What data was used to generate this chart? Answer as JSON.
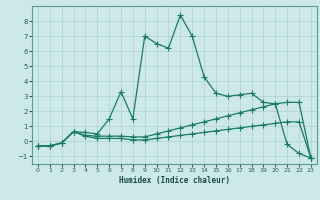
{
  "xlabel": "Humidex (Indice chaleur)",
  "background_color": "#cde8e8",
  "grid_color": "#b0d0d0",
  "line_color": "#1a7a6a",
  "xlim": [
    -0.5,
    23.5
  ],
  "ylim": [
    -1.5,
    9.0
  ],
  "xticks": [
    0,
    1,
    2,
    3,
    4,
    5,
    6,
    7,
    8,
    9,
    10,
    11,
    12,
    13,
    14,
    15,
    16,
    17,
    18,
    19,
    20,
    21,
    22,
    23
  ],
  "yticks": [
    -1,
    0,
    1,
    2,
    3,
    4,
    5,
    6,
    7,
    8
  ],
  "series": [
    {
      "x": [
        0,
        1,
        2,
        3,
        4,
        5,
        6,
        7,
        8,
        9,
        10,
        11,
        12,
        13,
        14,
        15,
        16,
        17,
        18,
        19,
        20,
        21,
        22,
        23
      ],
      "y": [
        -0.3,
        -0.3,
        -0.1,
        0.65,
        0.6,
        0.5,
        1.5,
        3.3,
        1.5,
        7.0,
        6.5,
        6.2,
        8.4,
        7.0,
        4.3,
        3.2,
        3.0,
        3.1,
        3.2,
        2.6,
        2.5,
        -0.2,
        -0.8,
        -1.1
      ]
    },
    {
      "x": [
        0,
        1,
        2,
        3,
        4,
        5,
        6,
        7,
        8,
        9,
        10,
        11,
        12,
        13,
        14,
        15,
        16,
        17,
        18,
        19,
        20,
        21,
        22,
        23
      ],
      "y": [
        -0.3,
        -0.3,
        -0.1,
        0.65,
        0.4,
        0.35,
        0.35,
        0.35,
        0.3,
        0.3,
        0.5,
        0.7,
        0.9,
        1.1,
        1.3,
        1.5,
        1.7,
        1.9,
        2.1,
        2.3,
        2.5,
        2.6,
        2.6,
        -1.1
      ]
    },
    {
      "x": [
        0,
        1,
        2,
        3,
        4,
        5,
        6,
        7,
        8,
        9,
        10,
        11,
        12,
        13,
        14,
        15,
        16,
        17,
        18,
        19,
        20,
        21,
        22,
        23
      ],
      "y": [
        -0.3,
        -0.3,
        -0.1,
        0.65,
        0.35,
        0.2,
        0.2,
        0.2,
        0.1,
        0.1,
        0.2,
        0.3,
        0.4,
        0.5,
        0.6,
        0.7,
        0.8,
        0.9,
        1.0,
        1.1,
        1.2,
        1.3,
        1.3,
        -1.1
      ]
    }
  ]
}
